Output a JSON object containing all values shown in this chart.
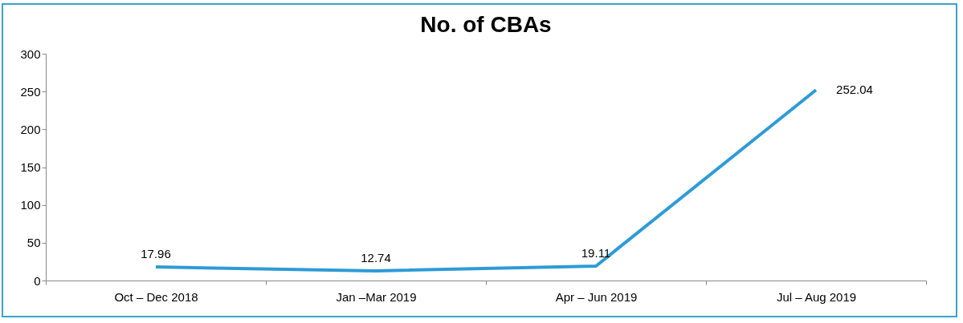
{
  "chart_data": {
    "type": "line",
    "title": "No. of CBAs",
    "categories": [
      "Oct – Dec 2018",
      "Jan –Mar 2019",
      "Apr – Jun 2019",
      "Jul – Aug 2019"
    ],
    "series": [
      {
        "color": "#2e9bd6",
        "values": [
          17.96,
          12.74,
          19.11,
          252.04
        ]
      }
    ],
    "ylim": [
      0,
      300
    ],
    "yticks": [
      0,
      50,
      100,
      150,
      200,
      250,
      300
    ],
    "data_labels": true,
    "grid": false,
    "legend": false,
    "marker": "none",
    "line_style": "solid"
  }
}
